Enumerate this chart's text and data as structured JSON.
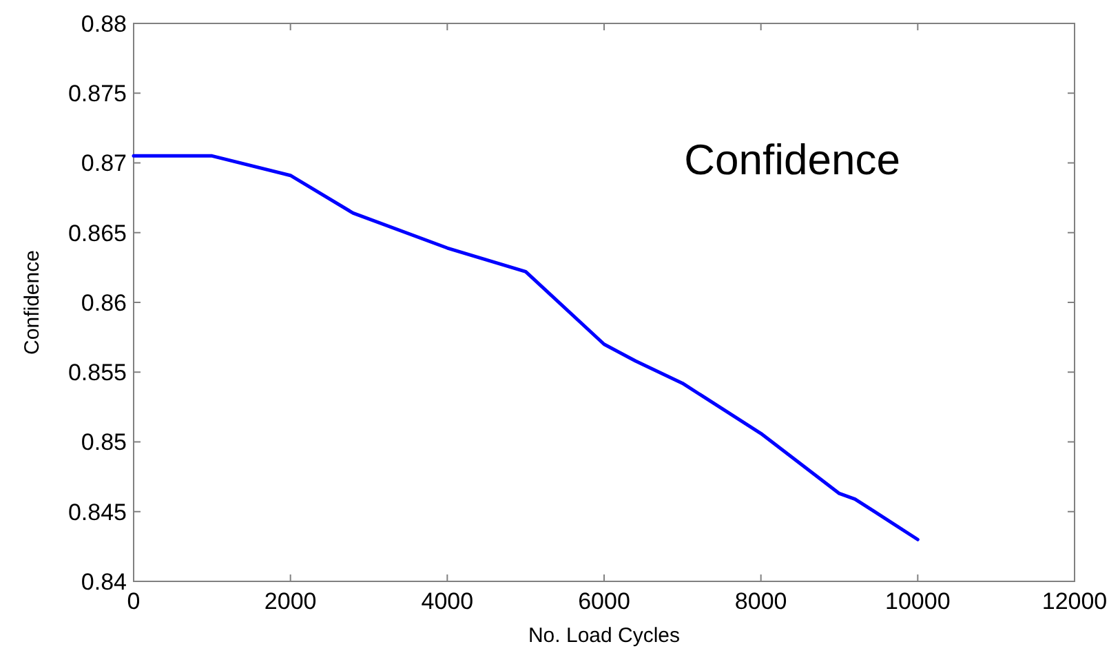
{
  "chart_data": {
    "type": "line",
    "xlabel": "No. Load Cycles",
    "ylabel": "Confidence",
    "annotations": [
      "Confidence"
    ],
    "x": [
      0,
      1000,
      2000,
      2800,
      4000,
      5000,
      6000,
      6400,
      7000,
      8000,
      9000,
      9200,
      10000
    ],
    "series": [
      {
        "color": "#0000ff",
        "values": [
          0.8705,
          0.8705,
          0.8691,
          0.8664,
          0.8639,
          0.8622,
          0.857,
          0.8558,
          0.8542,
          0.8506,
          0.8463,
          0.8459,
          0.843
        ]
      }
    ],
    "xlim": [
      0,
      12000
    ],
    "ylim": [
      0.84,
      0.88
    ],
    "xticks": [
      0,
      2000,
      4000,
      6000,
      8000,
      10000,
      12000
    ],
    "yticks": [
      0.84,
      0.845,
      0.85,
      0.855,
      0.86,
      0.865,
      0.87,
      0.875,
      0.88
    ],
    "grid": false,
    "marker": "none",
    "line_style": "solid"
  }
}
